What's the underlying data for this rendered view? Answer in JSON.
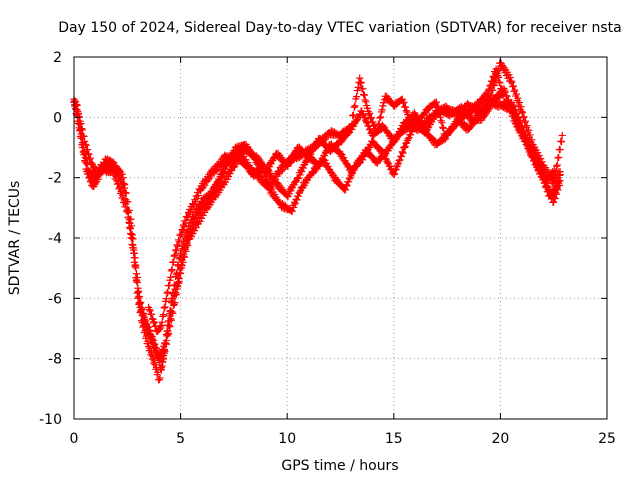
{
  "chart_data": {
    "type": "scatter",
    "title": "Day 150 of 2024, Sidereal Day-to-day VTEC variation (SDTVAR) for receiver nsta",
    "xlabel": "GPS time / hours",
    "ylabel": "SDTVAR / TECUs",
    "xlim": [
      0,
      25
    ],
    "ylim": [
      -10,
      2
    ],
    "xticks": [
      0,
      5,
      10,
      15,
      20,
      25
    ],
    "yticks": [
      -10,
      -8,
      -6,
      -4,
      -2,
      0,
      2
    ],
    "xtick_labels": [
      "0",
      "5",
      "10",
      "15",
      "20",
      "25"
    ],
    "ytick_labels": [
      "-10",
      "-8",
      "-6",
      "-4",
      "-2",
      "0",
      "2"
    ],
    "grid": true,
    "marker": "+",
    "series": [
      {
        "name": "track-1",
        "color": "#ff0000",
        "x": [
          0.0,
          0.15,
          0.3,
          0.5,
          0.7,
          1.0,
          1.3,
          1.6,
          2.0,
          2.4,
          2.8,
          3.0,
          3.2,
          3.5,
          3.8,
          4.0,
          4.2,
          4.5,
          4.8,
          5.0,
          5.3,
          5.6,
          6.0,
          6.5,
          7.0,
          7.5,
          8.0,
          8.5,
          9.0,
          9.5,
          10.0,
          10.5,
          11.0,
          11.5,
          12.0,
          12.5,
          13.0,
          13.5,
          14.0,
          14.5,
          15.0,
          15.5,
          16.0,
          16.5,
          17.0,
          17.5,
          18.0,
          18.5,
          19.0,
          19.5,
          20.0,
          20.5,
          21.0,
          21.5,
          22.0,
          22.5,
          22.8
        ],
        "y": [
          0.6,
          0.4,
          -0.4,
          -1.2,
          -1.8,
          -2.0,
          -1.6,
          -1.8,
          -1.7,
          -2.5,
          -4.5,
          -6.0,
          -6.8,
          -7.6,
          -8.2,
          -8.7,
          -7.9,
          -6.5,
          -5.2,
          -4.5,
          -3.8,
          -3.3,
          -2.8,
          -2.5,
          -1.8,
          -1.1,
          -0.9,
          -1.4,
          -1.8,
          -1.2,
          -1.6,
          -1.0,
          -1.3,
          -0.7,
          -1.1,
          -0.8,
          -0.4,
          0.2,
          -0.6,
          -0.3,
          -0.8,
          -0.2,
          0.1,
          -0.5,
          0.2,
          0.3,
          0.1,
          0.4,
          0.2,
          0.6,
          1.8,
          1.2,
          0.2,
          -0.9,
          -1.6,
          -2.2,
          -1.8
        ]
      },
      {
        "name": "track-2",
        "color": "#ff0000",
        "x": [
          0.0,
          0.2,
          0.4,
          0.6,
          0.9,
          1.2,
          1.5,
          1.9,
          2.3,
          2.7,
          3.0,
          3.3,
          3.6,
          3.9,
          4.1,
          4.4,
          4.7,
          5.0,
          5.4,
          5.8,
          6.2,
          6.6,
          7.0,
          7.5,
          8.0,
          8.5,
          9.0,
          9.5,
          10.0,
          10.5,
          11.0,
          11.5,
          12.0,
          12.5,
          13.0,
          13.5,
          14.0,
          14.5,
          15.0,
          15.5,
          16.0,
          16.5,
          17.0,
          17.5,
          18.0,
          18.5,
          19.0,
          19.5,
          20.0,
          20.5,
          21.0,
          21.5,
          22.0,
          22.3,
          22.6,
          22.8
        ],
        "y": [
          0.5,
          -0.2,
          -1.0,
          -1.8,
          -2.3,
          -1.9,
          -1.4,
          -1.6,
          -2.0,
          -3.6,
          -5.8,
          -6.7,
          -7.2,
          -7.8,
          -8.3,
          -7.2,
          -6.2,
          -5.0,
          -4.0,
          -3.5,
          -3.0,
          -2.6,
          -2.2,
          -1.6,
          -1.0,
          -1.3,
          -1.7,
          -2.2,
          -2.6,
          -2.0,
          -1.3,
          -1.6,
          -0.9,
          -1.2,
          -1.8,
          -1.4,
          -0.8,
          -1.2,
          -1.9,
          -1.0,
          -0.2,
          -0.5,
          -0.9,
          -0.6,
          -0.1,
          -0.4,
          0.1,
          0.5,
          0.4,
          0.3,
          -0.5,
          -1.3,
          -2.0,
          -2.6,
          -2.4,
          -1.9
        ]
      },
      {
        "name": "track-3",
        "color": "#ff0000",
        "x": [
          0.0,
          0.25,
          0.5,
          0.8,
          1.1,
          1.4,
          1.7,
          2.0,
          2.5,
          2.9,
          3.1,
          3.4,
          3.7,
          4.0,
          4.3,
          4.6,
          4.9,
          5.2,
          5.5,
          5.9,
          6.3,
          6.8,
          7.2,
          7.7,
          8.2,
          8.7,
          9.2,
          9.7,
          10.2,
          10.7,
          11.2,
          11.7,
          12.2,
          12.7,
          13.2,
          13.7,
          14.2,
          14.7,
          15.2,
          15.7,
          16.2,
          16.7,
          17.2,
          17.7,
          18.2,
          18.7,
          19.2,
          19.7,
          20.2,
          20.7,
          21.2,
          21.7,
          22.2,
          22.5,
          22.8
        ],
        "y": [
          0.5,
          0.0,
          -0.8,
          -1.5,
          -1.9,
          -1.7,
          -1.5,
          -2.1,
          -3.1,
          -4.9,
          -6.3,
          -6.9,
          -7.5,
          -8.0,
          -7.5,
          -6.0,
          -5.5,
          -4.3,
          -3.7,
          -3.0,
          -2.7,
          -2.1,
          -1.4,
          -1.3,
          -1.7,
          -2.0,
          -2.4,
          -2.9,
          -3.1,
          -2.3,
          -1.8,
          -1.4,
          -2.0,
          -2.4,
          -1.6,
          -1.1,
          -1.5,
          -1.1,
          -0.6,
          -0.3,
          -0.4,
          0.0,
          0.2,
          0.1,
          0.3,
          -0.1,
          0.0,
          0.6,
          0.9,
          -0.2,
          -0.8,
          -1.6,
          -2.3,
          -2.8,
          -2.1
        ]
      },
      {
        "name": "track-4",
        "color": "#ff0000",
        "x": [
          3.5,
          3.7,
          3.9,
          4.1,
          4.3,
          4.5,
          4.7,
          5.0,
          5.3,
          5.6,
          5.9,
          6.2,
          6.5,
          6.8,
          7.1,
          7.4,
          7.7,
          8.0,
          8.4,
          8.8,
          9.2,
          9.6,
          10.0,
          10.4,
          10.8,
          11.2,
          11.6,
          12.0,
          12.5,
          13.0,
          13.4,
          13.8,
          14.2,
          14.6,
          15.0,
          15.4,
          15.8,
          16.2,
          16.6,
          17.0,
          17.4,
          17.8,
          18.2,
          18.6,
          19.0,
          19.4,
          19.8,
          20.2,
          20.6,
          21.0,
          21.4,
          21.8,
          22.2,
          22.6,
          22.9
        ],
        "y": [
          -6.3,
          -6.7,
          -7.1,
          -6.9,
          -6.1,
          -5.4,
          -4.6,
          -3.9,
          -3.3,
          -2.9,
          -2.4,
          -2.1,
          -1.8,
          -1.6,
          -1.3,
          -1.5,
          -1.1,
          -1.4,
          -1.9,
          -1.7,
          -2.3,
          -1.8,
          -1.5,
          -1.3,
          -1.2,
          -1.0,
          -0.8,
          -0.5,
          -0.6,
          -0.3,
          1.3,
          0.2,
          -0.5,
          0.7,
          0.4,
          0.6,
          -0.2,
          -0.1,
          0.3,
          0.5,
          -0.6,
          -0.3,
          0.0,
          0.2,
          0.5,
          0.8,
          1.6,
          0.5,
          0.4,
          -0.3,
          -1.0,
          -1.5,
          -2.0,
          -1.8,
          -0.6
        ]
      }
    ]
  }
}
